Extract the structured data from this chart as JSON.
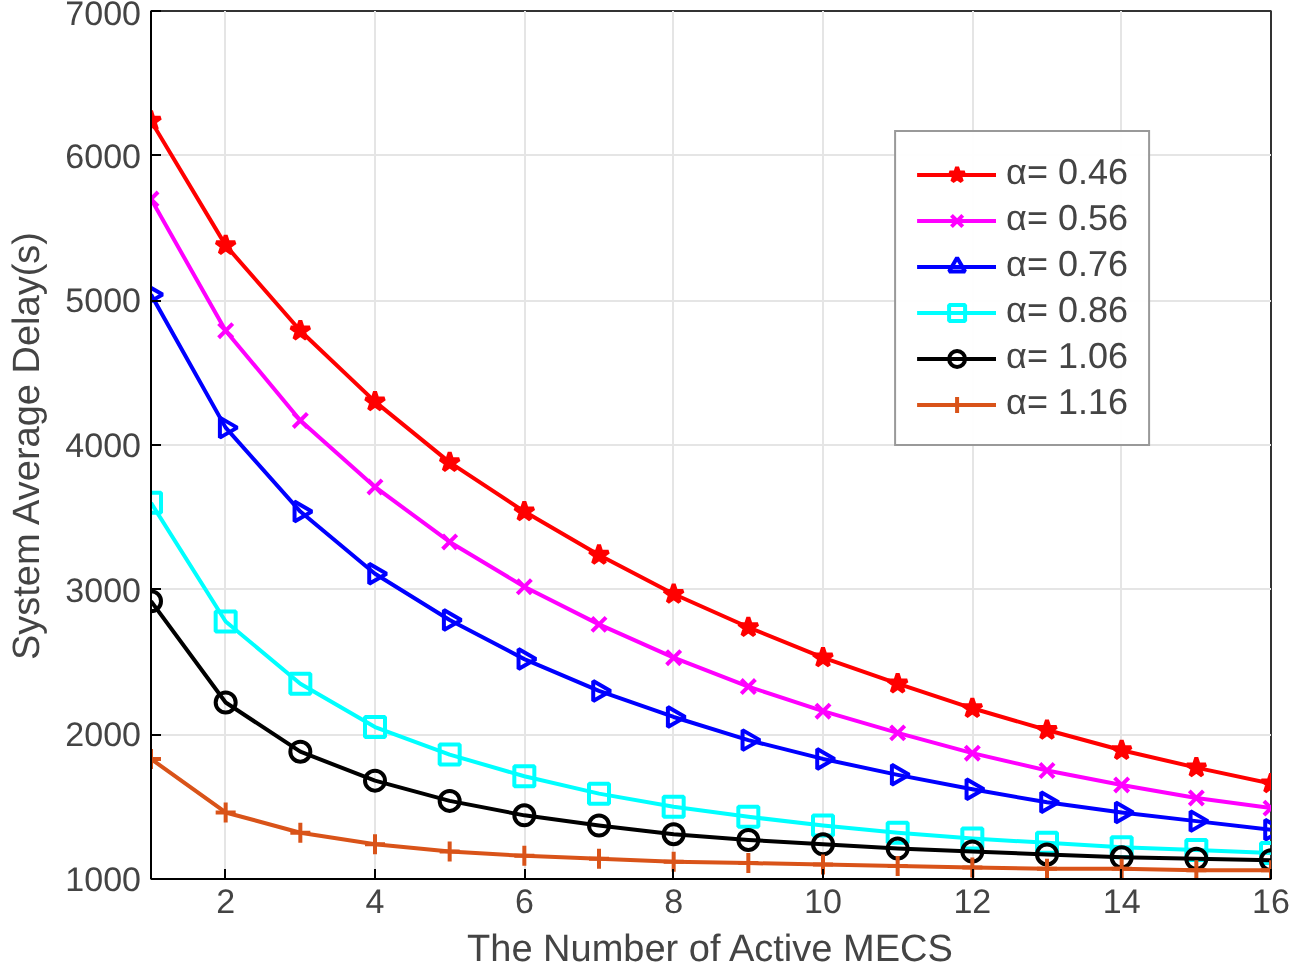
{
  "chart_data": {
    "type": "line",
    "xlabel": "The Number of Active MECS",
    "ylabel": "System Average Delay(s)",
    "x": [
      1,
      2,
      3,
      4,
      5,
      6,
      7,
      8,
      9,
      10,
      11,
      12,
      13,
      14,
      15,
      16
    ],
    "xlim": [
      1,
      16
    ],
    "xticks": [
      2,
      4,
      6,
      8,
      10,
      12,
      14,
      16
    ],
    "ylim": [
      1000,
      7000
    ],
    "yticks": [
      1000,
      2000,
      3000,
      4000,
      5000,
      6000,
      7000
    ],
    "grid": true,
    "legend": "top right",
    "line_style": "solid",
    "series": [
      {
        "name": "α= 0.46",
        "color": "#ff0000",
        "marker": "star",
        "values": [
          6240,
          5380,
          4790,
          4300,
          3880,
          3540,
          3240,
          2970,
          2740,
          2530,
          2350,
          2180,
          2030,
          1890,
          1770,
          1660
        ]
      },
      {
        "name": "α= 0.56",
        "color": "#ff00ff",
        "marker": "x",
        "values": [
          5700,
          4790,
          4170,
          3710,
          3330,
          3020,
          2760,
          2530,
          2330,
          2160,
          2010,
          1870,
          1750,
          1650,
          1560,
          1490
        ]
      },
      {
        "name": "α= 0.76",
        "color": "#0000ff",
        "marker": "triangle",
        "values": [
          5040,
          4120,
          3540,
          3110,
          2790,
          2520,
          2300,
          2120,
          1960,
          1830,
          1720,
          1620,
          1530,
          1460,
          1400,
          1340
        ]
      },
      {
        "name": "α= 0.86",
        "color": "#00ffff",
        "marker": "square",
        "values": [
          3600,
          2780,
          2350,
          2050,
          1860,
          1710,
          1590,
          1500,
          1430,
          1370,
          1320,
          1280,
          1250,
          1220,
          1200,
          1180
        ]
      },
      {
        "name": "α= 1.06",
        "color": "#000000",
        "marker": "circle",
        "values": [
          2920,
          2220,
          1880,
          1680,
          1540,
          1440,
          1370,
          1310,
          1270,
          1240,
          1210,
          1190,
          1170,
          1150,
          1140,
          1130
        ]
      },
      {
        "name": "α= 1.16",
        "color": "#d95319",
        "marker": "cross",
        "values": [
          1830,
          1460,
          1320,
          1240,
          1190,
          1160,
          1140,
          1120,
          1110,
          1100,
          1090,
          1080,
          1070,
          1070,
          1060,
          1060
        ]
      }
    ]
  }
}
